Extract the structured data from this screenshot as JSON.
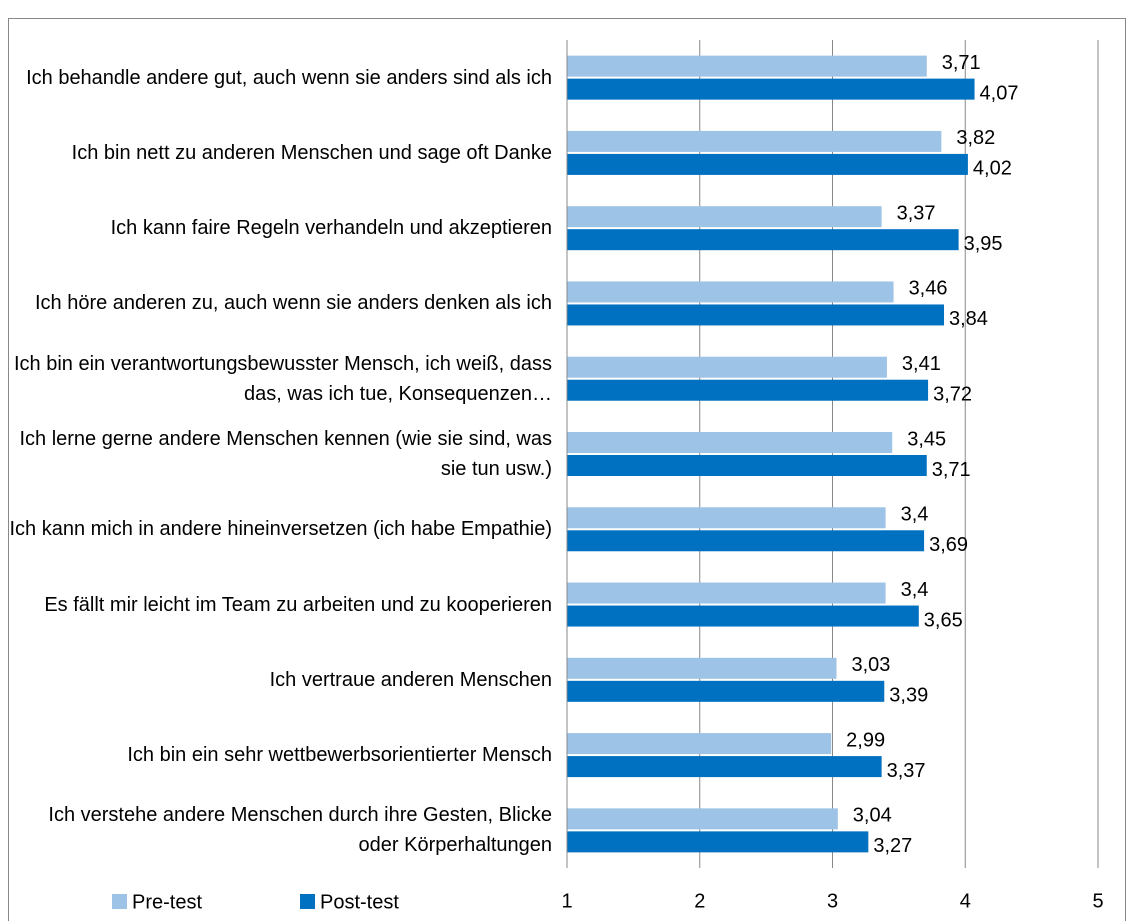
{
  "chart_data": {
    "type": "bar",
    "orientation": "horizontal",
    "categories": [
      "Ich behandle andere gut, auch wenn sie anders sind als ich",
      "Ich bin nett zu anderen Menschen und sage oft Danke",
      "Ich kann faire Regeln verhandeln und akzeptieren",
      "Ich höre anderen zu, auch wenn sie anders denken als ich",
      "Ich bin ein verantwortungsbewusster Mensch, ich weiß, dass das, was ich tue, Konsequenzen…",
      "Ich lerne gerne andere Menschen kennen (wie sie sind, was sie tun usw.)",
      "Ich kann mich in andere hineinversetzen (ich habe Empathie)",
      "Es fällt mir leicht im Team zu arbeiten und zu kooperieren",
      "Ich vertraue anderen Menschen",
      "Ich bin ein sehr wettbewerbsorientierter Mensch",
      "Ich verstehe andere Menschen durch ihre Gesten, Blicke oder Körperhaltungen"
    ],
    "series": [
      {
        "name": "Pre-test",
        "color": "#9dc3e6",
        "values": [
          3.71,
          3.82,
          3.37,
          3.46,
          3.41,
          3.45,
          3.4,
          3.4,
          3.03,
          2.99,
          3.04
        ],
        "value_labels": [
          "3,71",
          "3,82",
          "3,37",
          "3,46",
          "3,41",
          "3,45",
          "3,4",
          "3,4",
          "3,03",
          "2,99",
          "3,04"
        ]
      },
      {
        "name": "Post-test",
        "color": "#0070c0",
        "values": [
          4.07,
          4.02,
          3.95,
          3.84,
          3.72,
          3.71,
          3.69,
          3.65,
          3.39,
          3.37,
          3.27
        ],
        "value_labels": [
          "4,07",
          "4,02",
          "3,95",
          "3,84",
          "3,72",
          "3,71",
          "3,69",
          "3,65",
          "3,39",
          "3,37",
          "3,27"
        ]
      }
    ],
    "xlim": [
      1,
      5
    ],
    "xticks": [
      1,
      2,
      3,
      4,
      5
    ],
    "grid": true,
    "legend": "bottom-left"
  }
}
